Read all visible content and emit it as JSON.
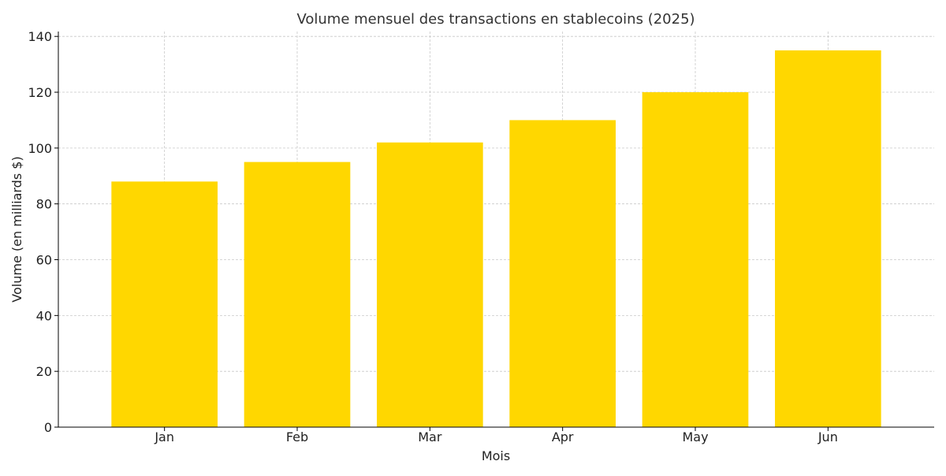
{
  "chart_data": {
    "type": "bar",
    "title": "Volume mensuel des transactions en stablecoins (2025)",
    "xlabel": "Mois",
    "ylabel": "Volume (en milliards $)",
    "categories": [
      "Jan",
      "Feb",
      "Mar",
      "Apr",
      "May",
      "Jun"
    ],
    "values": [
      88,
      95,
      102,
      110,
      120,
      135
    ],
    "ylim": [
      0,
      141.75
    ],
    "yticks": [
      0,
      20,
      40,
      60,
      80,
      100,
      120,
      140
    ],
    "grid": true,
    "bar_color": "#FFD700",
    "axis_color": "#000000",
    "grid_color": "#c8c8c8",
    "text_color": "#333333"
  }
}
